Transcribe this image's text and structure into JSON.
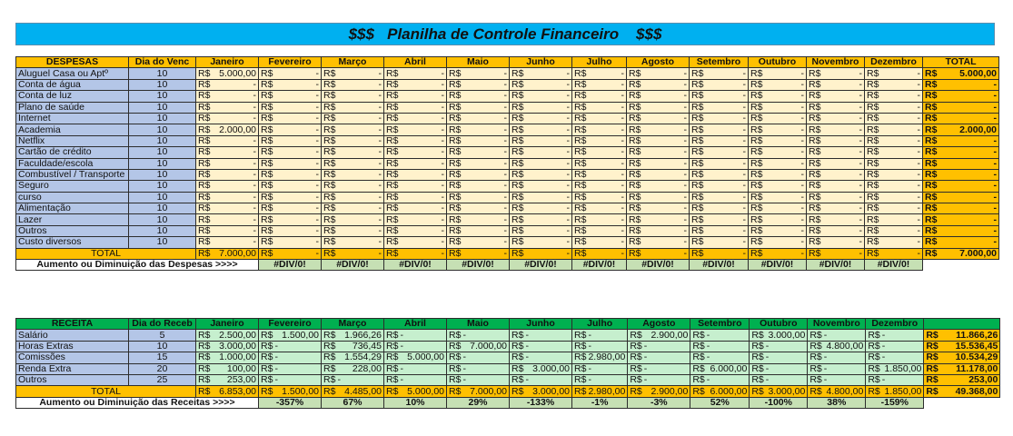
{
  "title": "$$$   Planilha de Controle Financeiro    $$$",
  "months": [
    "Janeiro",
    "Fevereiro",
    "Março",
    "Abril",
    "Maio",
    "Junho",
    "Julho",
    "Agosto",
    "Setembro",
    "Outubro",
    "Novembro",
    "Dezembro"
  ],
  "currency": "R$",
  "expenses": {
    "header_label": "DESPESAS",
    "day_header": "Dia do Venc",
    "total_header": "TOTAL",
    "rows": [
      {
        "label": "Aluguel Casa ou Aptº",
        "day": "10",
        "values": [
          "5.000,00",
          "-",
          "-",
          "-",
          "-",
          "-",
          "-",
          "-",
          "-",
          "-",
          "-",
          "-"
        ],
        "total": "5.000,00"
      },
      {
        "label": "Conta de água",
        "day": "10",
        "values": [
          "-",
          "-",
          "-",
          "-",
          "-",
          "-",
          "-",
          "-",
          "-",
          "-",
          "-",
          "-"
        ],
        "total": "-"
      },
      {
        "label": "Conta de luz",
        "day": "10",
        "values": [
          "-",
          "-",
          "-",
          "-",
          "-",
          "-",
          "-",
          "-",
          "-",
          "-",
          "-",
          "-"
        ],
        "total": "-"
      },
      {
        "label": "Plano de saúde",
        "day": "10",
        "values": [
          "-",
          "-",
          "-",
          "-",
          "-",
          "-",
          "-",
          "-",
          "-",
          "-",
          "-",
          "-"
        ],
        "total": "-"
      },
      {
        "label": "Internet",
        "day": "10",
        "values": [
          "-",
          "-",
          "-",
          "-",
          "-",
          "-",
          "-",
          "-",
          "-",
          "-",
          "-",
          "-"
        ],
        "total": "-"
      },
      {
        "label": "Academia",
        "day": "10",
        "values": [
          "2.000,00",
          "-",
          "-",
          "-",
          "-",
          "-",
          "-",
          "-",
          "-",
          "-",
          "-",
          "-"
        ],
        "total": "2.000,00"
      },
      {
        "label": "Netflix",
        "day": "10",
        "values": [
          "-",
          "-",
          "-",
          "-",
          "-",
          "-",
          "-",
          "-",
          "-",
          "-",
          "-",
          "-"
        ],
        "total": "-"
      },
      {
        "label": "Cartão de crédito",
        "day": "10",
        "values": [
          "-",
          "-",
          "-",
          "-",
          "-",
          "-",
          "-",
          "-",
          "-",
          "-",
          "-",
          "-"
        ],
        "total": "-"
      },
      {
        "label": "Faculdade/escola",
        "day": "10",
        "values": [
          "-",
          "-",
          "-",
          "-",
          "-",
          "-",
          "-",
          "-",
          "-",
          "-",
          "-",
          "-"
        ],
        "total": "-"
      },
      {
        "label": "Combustível / Transporte",
        "day": "10",
        "values": [
          "-",
          "-",
          "-",
          "-",
          "-",
          "-",
          "-",
          "-",
          "-",
          "-",
          "-",
          "-"
        ],
        "total": "-"
      },
      {
        "label": "Seguro",
        "day": "10",
        "values": [
          "-",
          "-",
          "-",
          "-",
          "-",
          "-",
          "-",
          "-",
          "-",
          "-",
          "-",
          "-"
        ],
        "total": "-"
      },
      {
        "label": "curso",
        "day": "10",
        "values": [
          "-",
          "-",
          "-",
          "-",
          "-",
          "-",
          "-",
          "-",
          "-",
          "-",
          "-",
          "-"
        ],
        "total": "-"
      },
      {
        "label": "Alimentação",
        "day": "10",
        "values": [
          "-",
          "-",
          "-",
          "-",
          "-",
          "-",
          "-",
          "-",
          "-",
          "-",
          "-",
          "-"
        ],
        "total": "-"
      },
      {
        "label": "Lazer",
        "day": "10",
        "values": [
          "-",
          "-",
          "-",
          "-",
          "-",
          "-",
          "-",
          "-",
          "-",
          "-",
          "-",
          "-"
        ],
        "total": "-"
      },
      {
        "label": "Outros",
        "day": "10",
        "values": [
          "-",
          "-",
          "-",
          "-",
          "-",
          "-",
          "-",
          "-",
          "-",
          "-",
          "-",
          "-"
        ],
        "total": "-"
      },
      {
        "label": "Custo diversos",
        "day": "10",
        "values": [
          "-",
          "-",
          "-",
          "-",
          "-",
          "-",
          "-",
          "-",
          "-",
          "-",
          "-",
          "-"
        ],
        "total": "-"
      }
    ],
    "total_row": {
      "label": "TOTAL",
      "values": [
        "7.000,00",
        "-",
        "-",
        "-",
        "-",
        "-",
        "-",
        "-",
        "-",
        "-",
        "-",
        "-"
      ],
      "total": "7.000,00"
    },
    "variation_label": "Aumento ou Diminuição das Despesas >>>>",
    "variation": [
      "#DIV/0!",
      "#DIV/0!",
      "#DIV/0!",
      "#DIV/0!",
      "#DIV/0!",
      "#DIV/0!",
      "#DIV/0!",
      "#DIV/0!",
      "#DIV/0!",
      "#DIV/0!",
      "#DIV/0!"
    ]
  },
  "income": {
    "header_label": "RECEITA",
    "day_header": "Dia do Receb",
    "rows": [
      {
        "label": "Salário",
        "day": "5",
        "values": [
          "2.500,00",
          "1.500,00",
          "1.966,26",
          "-",
          "-",
          "-",
          "-",
          "2.900,00",
          "-",
          "3.000,00",
          "-",
          "-"
        ],
        "total": "11.866,26"
      },
      {
        "label": "Horas Extras",
        "day": "10",
        "values": [
          "3.000,00",
          "-",
          "736,45",
          "-",
          "7.000,00",
          "-",
          "-",
          "-",
          "-",
          "-",
          "4.800,00",
          "-"
        ],
        "total": "15.536,45"
      },
      {
        "label": "Comissões",
        "day": "15",
        "values": [
          "1.000,00",
          "-",
          "1.554,29",
          "5.000,00",
          "-",
          "-",
          "2.980,00",
          "-",
          "-",
          "-",
          "-",
          "-"
        ],
        "total": "10.534,29"
      },
      {
        "label": "Renda Extra",
        "day": "20",
        "values": [
          "100,00",
          "-",
          "228,00",
          "-",
          "-",
          "3.000,00",
          "-",
          "-",
          "6.000,00",
          "-",
          "-",
          "1.850,00"
        ],
        "total": "11.178,00"
      },
      {
        "label": "Outros",
        "day": "25",
        "values": [
          "253,00",
          "-",
          "-",
          "-",
          "-",
          "-",
          "-",
          "-",
          "-",
          "-",
          "-",
          "-"
        ],
        "total": "253,00"
      }
    ],
    "total_row": {
      "label": "TOTAL",
      "values": [
        "6.853,00",
        "1.500,00",
        "4.485,00",
        "5.000,00",
        "7.000,00",
        "3.000,00",
        "2.980,00",
        "2.900,00",
        "6.000,00",
        "3.000,00",
        "4.800,00",
        "1.850,00"
      ],
      "total": "49.368,00"
    },
    "variation_label": "Aumento ou Diminuição das Receitas >>>>",
    "variation": [
      "-357%",
      "67%",
      "10%",
      "29%",
      "-133%",
      "-1%",
      "-3%",
      "52%",
      "-100%",
      "38%",
      "-159%"
    ]
  }
}
